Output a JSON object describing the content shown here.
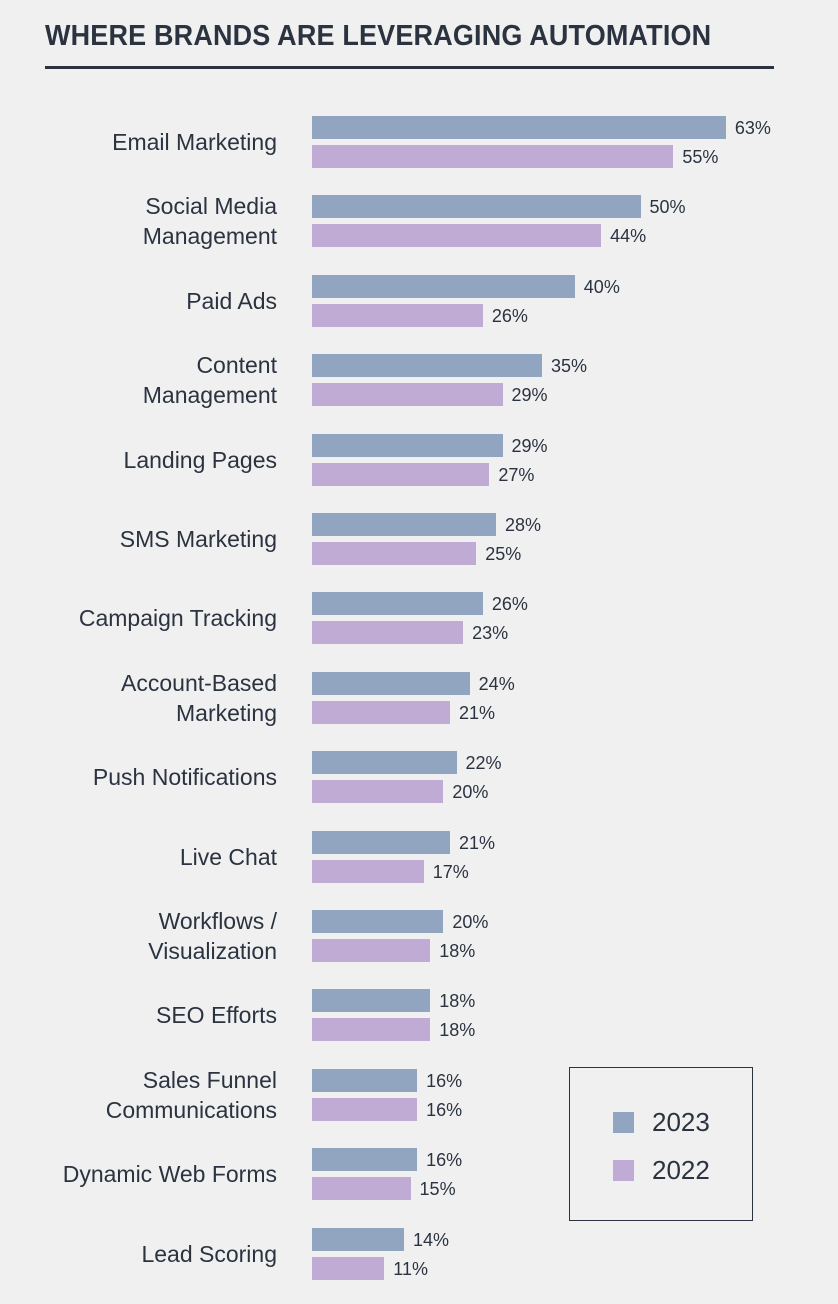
{
  "chart_data": {
    "type": "bar",
    "orientation": "horizontal",
    "title": "WHERE BRANDS ARE LEVERAGING AUTOMATION",
    "categories": [
      "Email Marketing",
      "Social Media Management",
      "Paid Ads",
      "Content Management",
      "Landing Pages",
      "SMS Marketing",
      "Campaign Tracking",
      "Account-Based Marketing",
      "Push Notifications",
      "Live Chat",
      "Workflows / Visualization",
      "SEO Efforts",
      "Sales Funnel Communications",
      "Dynamic Web Forms",
      "Lead Scoring"
    ],
    "category_lines": [
      [
        "Email Marketing"
      ],
      [
        "Social Media",
        "Management"
      ],
      [
        "Paid Ads"
      ],
      [
        "Content",
        "Management"
      ],
      [
        "Landing Pages"
      ],
      [
        "SMS Marketing"
      ],
      [
        "Campaign Tracking"
      ],
      [
        "Account-Based",
        "Marketing"
      ],
      [
        "Push Notifications"
      ],
      [
        "Live Chat"
      ],
      [
        "Workflows /",
        "Visualization"
      ],
      [
        "SEO Efforts"
      ],
      [
        "Sales Funnel",
        "Communications"
      ],
      [
        "Dynamic Web Forms"
      ],
      [
        "Lead Scoring"
      ]
    ],
    "series": [
      {
        "name": "2023",
        "color": "#91a5c0",
        "values": [
          63,
          50,
          40,
          35,
          29,
          28,
          26,
          24,
          22,
          21,
          20,
          18,
          16,
          16,
          14
        ]
      },
      {
        "name": "2022",
        "color": "#c0abd5",
        "values": [
          55,
          44,
          26,
          29,
          27,
          25,
          23,
          21,
          20,
          17,
          18,
          18,
          16,
          15,
          11
        ]
      }
    ],
    "value_suffix": "%",
    "xlim": [
      0,
      100
    ],
    "grid": false,
    "legend_placement": "bottom-right"
  }
}
